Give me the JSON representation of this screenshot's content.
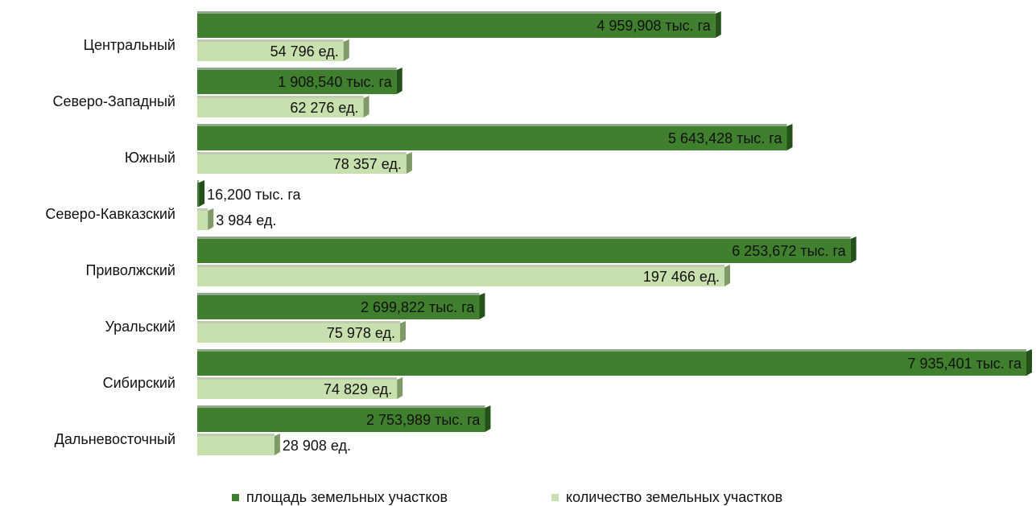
{
  "chart_data": {
    "type": "bar",
    "orientation": "horizontal",
    "categories": [
      "Центральный",
      "Северо-Западный",
      "Южный",
      "Северо-Кавказский",
      "Приволжский",
      "Уральский",
      "Сибирский",
      "Дальневосточный"
    ],
    "series": [
      {
        "name": "площадь земельных участков",
        "color": "#3f7f2e",
        "values": [
          4959.908,
          1908.54,
          5643.428,
          16.2,
          6253.672,
          2699.822,
          7935.401,
          2753.989
        ],
        "value_labels": [
          "4 959,908 тыс. га",
          "1 908,540 тыс. га",
          "5 643,428 тыс. га",
          "16,200 тыс. га",
          "6 253,672 тыс. га",
          "2 699,822 тыс. га",
          "7 935,401 тыс. га",
          "2 753,989 тыс. га"
        ]
      },
      {
        "name": "количество земельных участков",
        "color": "#c8dfae",
        "values": [
          54796,
          62276,
          78357,
          3984,
          197466,
          75978,
          74829,
          28908
        ],
        "value_labels": [
          "54 796 ед.",
          "62 276 ед.",
          "78 357 ед.",
          "3 984 ед.",
          "197 466 ед.",
          "75 978 ед.",
          "74 829 ед.",
          "28 908 ед."
        ]
      }
    ],
    "legend": "bottom"
  }
}
